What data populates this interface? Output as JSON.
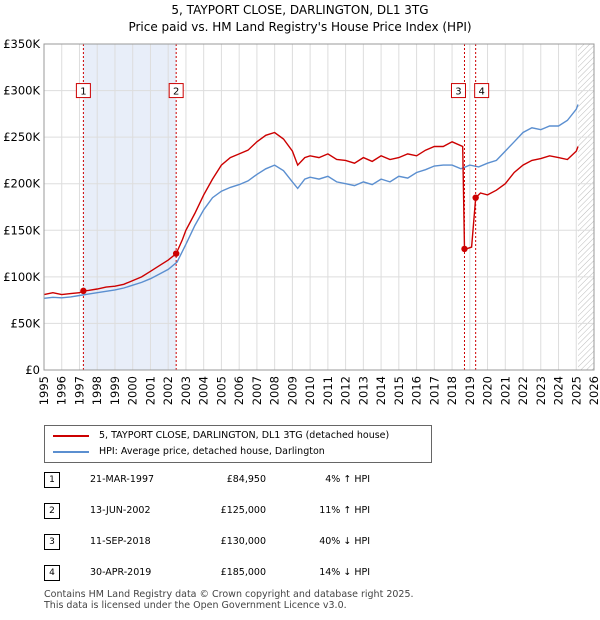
{
  "header": {
    "title_line1": "5, TAYPORT CLOSE, DARLINGTON, DL1 3TG",
    "title_line2": "Price paid vs. HM Land Registry's House Price Index (HPI)"
  },
  "colors": {
    "property_line": "#cc0000",
    "hpi_line": "#5b8fd0",
    "shade": "#e8eef9",
    "hatch": "#bbbbbb",
    "marker_box_border": "#cc0000"
  },
  "chart_data": {
    "type": "line",
    "xlim": [
      1995,
      2026
    ],
    "ylim": [
      0,
      350000
    ],
    "x_ticks": [
      "1995",
      "1996",
      "1997",
      "1998",
      "1999",
      "2000",
      "2001",
      "2002",
      "2003",
      "2004",
      "2005",
      "2006",
      "2007",
      "2008",
      "2009",
      "2010",
      "2011",
      "2012",
      "2013",
      "2014",
      "2015",
      "2016",
      "2017",
      "2018",
      "2019",
      "2020",
      "2021",
      "2022",
      "2023",
      "2024",
      "2025",
      "2026"
    ],
    "y_ticks": [
      {
        "value": 0,
        "label": "£0"
      },
      {
        "value": 50000,
        "label": "£50K"
      },
      {
        "value": 100000,
        "label": "£100K"
      },
      {
        "value": 150000,
        "label": "£150K"
      },
      {
        "value": 200000,
        "label": "£200K"
      },
      {
        "value": 250000,
        "label": "£250K"
      },
      {
        "value": 300000,
        "label": "£300K"
      },
      {
        "value": 350000,
        "label": "£350K"
      }
    ],
    "shaded_periods": [
      [
        1997.22,
        2002.45
      ]
    ],
    "future_hatch_from": 2025.1,
    "series": [
      {
        "name": "5, TAYPORT CLOSE, DARLINGTON, DL1 3TG (detached house)",
        "x": [
          1995,
          1995.5,
          1996,
          1996.5,
          1997,
          1997.22,
          1997.5,
          1998,
          1998.5,
          1999,
          1999.5,
          2000,
          2000.5,
          2001,
          2001.5,
          2002,
          2002.45,
          2002.8,
          2003,
          2003.5,
          2004,
          2004.5,
          2005,
          2005.5,
          2006,
          2006.5,
          2007,
          2007.5,
          2008,
          2008.5,
          2009,
          2009.3,
          2009.7,
          2010,
          2010.5,
          2011,
          2011.5,
          2012,
          2012.5,
          2013,
          2013.5,
          2014,
          2014.5,
          2015,
          2015.5,
          2016,
          2016.5,
          2017,
          2017.5,
          2018,
          2018.6,
          2018.7,
          2018.8,
          2019.1,
          2019.33,
          2019.6,
          2020,
          2020.5,
          2021,
          2021.5,
          2022,
          2022.5,
          2023,
          2023.5,
          2024,
          2024.5,
          2025,
          2025.1
        ],
        "values": [
          81000,
          83000,
          81000,
          82000,
          83000,
          84950,
          85500,
          87000,
          89000,
          90000,
          92000,
          96000,
          100000,
          106000,
          112000,
          118000,
          125000,
          140000,
          150000,
          168000,
          188000,
          205000,
          220000,
          228000,
          232000,
          236000,
          245000,
          252000,
          255000,
          248000,
          235000,
          220000,
          228000,
          230000,
          228000,
          232000,
          226000,
          225000,
          222000,
          228000,
          224000,
          230000,
          226000,
          228000,
          232000,
          230000,
          236000,
          240000,
          240000,
          245000,
          240000,
          130000,
          130000,
          132000,
          185000,
          190000,
          188000,
          193000,
          200000,
          212000,
          220000,
          225000,
          227000,
          230000,
          228000,
          226000,
          235000,
          240000
        ]
      },
      {
        "name": "HPI: Average price, detached house, Darlington",
        "x": [
          1995,
          1995.5,
          1996,
          1996.5,
          1997,
          1997.5,
          1998,
          1998.5,
          1999,
          1999.5,
          2000,
          2000.5,
          2001,
          2001.5,
          2002,
          2002.5,
          2003,
          2003.5,
          2004,
          2004.5,
          2005,
          2005.5,
          2006,
          2006.5,
          2007,
          2007.5,
          2008,
          2008.5,
          2009,
          2009.3,
          2009.7,
          2010,
          2010.5,
          2011,
          2011.5,
          2012,
          2012.5,
          2013,
          2013.5,
          2014,
          2014.5,
          2015,
          2015.5,
          2016,
          2016.5,
          2017,
          2017.5,
          2018,
          2018.5,
          2019,
          2019.5,
          2020,
          2020.5,
          2021,
          2021.5,
          2022,
          2022.5,
          2023,
          2023.5,
          2024,
          2024.5,
          2025,
          2025.1
        ],
        "values": [
          77000,
          78000,
          77500,
          78500,
          80000,
          81500,
          83000,
          84500,
          86000,
          88000,
          91000,
          94000,
          98000,
          103000,
          108000,
          116000,
          135000,
          155000,
          172000,
          185000,
          192000,
          196000,
          199000,
          203000,
          210000,
          216000,
          220000,
          214000,
          202000,
          195000,
          205000,
          207000,
          205000,
          208000,
          202000,
          200000,
          198000,
          202000,
          199000,
          205000,
          202000,
          208000,
          206000,
          212000,
          215000,
          219000,
          220000,
          220000,
          216000,
          220000,
          218000,
          222000,
          225000,
          235000,
          245000,
          255000,
          260000,
          258000,
          262000,
          262000,
          268000,
          280000,
          285000
        ]
      }
    ],
    "sales": [
      {
        "label": "1",
        "x": 1997.22,
        "value": 84950
      },
      {
        "label": "2",
        "x": 2002.45,
        "value": 125000
      },
      {
        "label": "3",
        "x": 2018.7,
        "value": 130000
      },
      {
        "label": "4",
        "x": 2019.33,
        "value": 185000
      }
    ]
  },
  "legend": {
    "property_label": "5, TAYPORT CLOSE, DARLINGTON, DL1 3TG (detached house)",
    "hpi_label": "HPI: Average price, detached house, Darlington"
  },
  "transactions": [
    {
      "num": "1",
      "date": "21-MAR-1997",
      "price": "£84,950",
      "hpi": "4% ↑ HPI"
    },
    {
      "num": "2",
      "date": "13-JUN-2002",
      "price": "£125,000",
      "hpi": "11% ↑ HPI"
    },
    {
      "num": "3",
      "date": "11-SEP-2018",
      "price": "£130,000",
      "hpi": "40% ↓ HPI"
    },
    {
      "num": "4",
      "date": "30-APR-2019",
      "price": "£185,000",
      "hpi": "14% ↓ HPI"
    }
  ],
  "footer": {
    "line1": "Contains HM Land Registry data © Crown copyright and database right 2025.",
    "line2": "This data is licensed under the Open Government Licence v3.0."
  }
}
